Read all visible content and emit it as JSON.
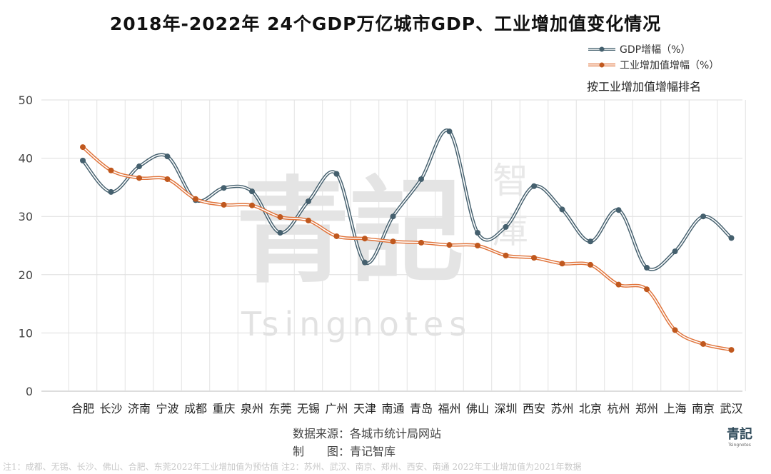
{
  "chart_data": {
    "type": "line",
    "title": "2018年-2022年 24个GDP万亿城市GDP、工业增加值变化情况",
    "categories": [
      "合肥",
      "长沙",
      "济南",
      "宁波",
      "成都",
      "重庆",
      "泉州",
      "东莞",
      "无锡",
      "广州",
      "天津",
      "南通",
      "青岛",
      "福州",
      "佛山",
      "深圳",
      "西安",
      "苏州",
      "北京",
      "杭州",
      "郑州",
      "上海",
      "南京",
      "武汉"
    ],
    "series": [
      {
        "name": "GDP增幅（%）",
        "color": "#45606e",
        "values": [
          39.6,
          34.2,
          38.6,
          40.3,
          32.8,
          34.9,
          34.3,
          27.2,
          32.6,
          37.3,
          22.1,
          30.0,
          36.4,
          44.6,
          27.2,
          28.2,
          35.2,
          31.2,
          25.7,
          31.1,
          21.2,
          24.0,
          30.0,
          26.3
        ]
      },
      {
        "name": "工业增加值增幅（%）",
        "color": "#e0733a",
        "values": [
          41.9,
          37.9,
          36.6,
          36.4,
          33.0,
          32.0,
          31.9,
          29.9,
          29.3,
          26.6,
          26.2,
          25.7,
          25.5,
          25.1,
          25.0,
          23.3,
          22.9,
          21.9,
          21.7,
          18.3,
          17.5,
          10.5,
          8.1,
          7.1
        ]
      }
    ],
    "ylim": [
      0,
      50
    ],
    "yticks": [
      "0",
      "10",
      "20",
      "30",
      "40",
      "50"
    ],
    "grid": true,
    "legend_position": "top-right",
    "legend_note": "按工业增加值增幅排名",
    "xlabel": "",
    "ylabel": ""
  },
  "source": "数据来源：各城市统计局网站",
  "maker": "制　　图：青记智库",
  "note": "注1：成都、无锡、长沙、佛山、合肥、东莞2022年工业增加值为预估值  注2：苏州、武汉、南京、郑州、西安、南通 2022年工业增加值为2021年数据",
  "watermark": {
    "main": "青記",
    "side": "智庫",
    "latin": "Tsingnotes"
  },
  "logo": {
    "main": "青記",
    "sub": "Tsingnotes"
  }
}
